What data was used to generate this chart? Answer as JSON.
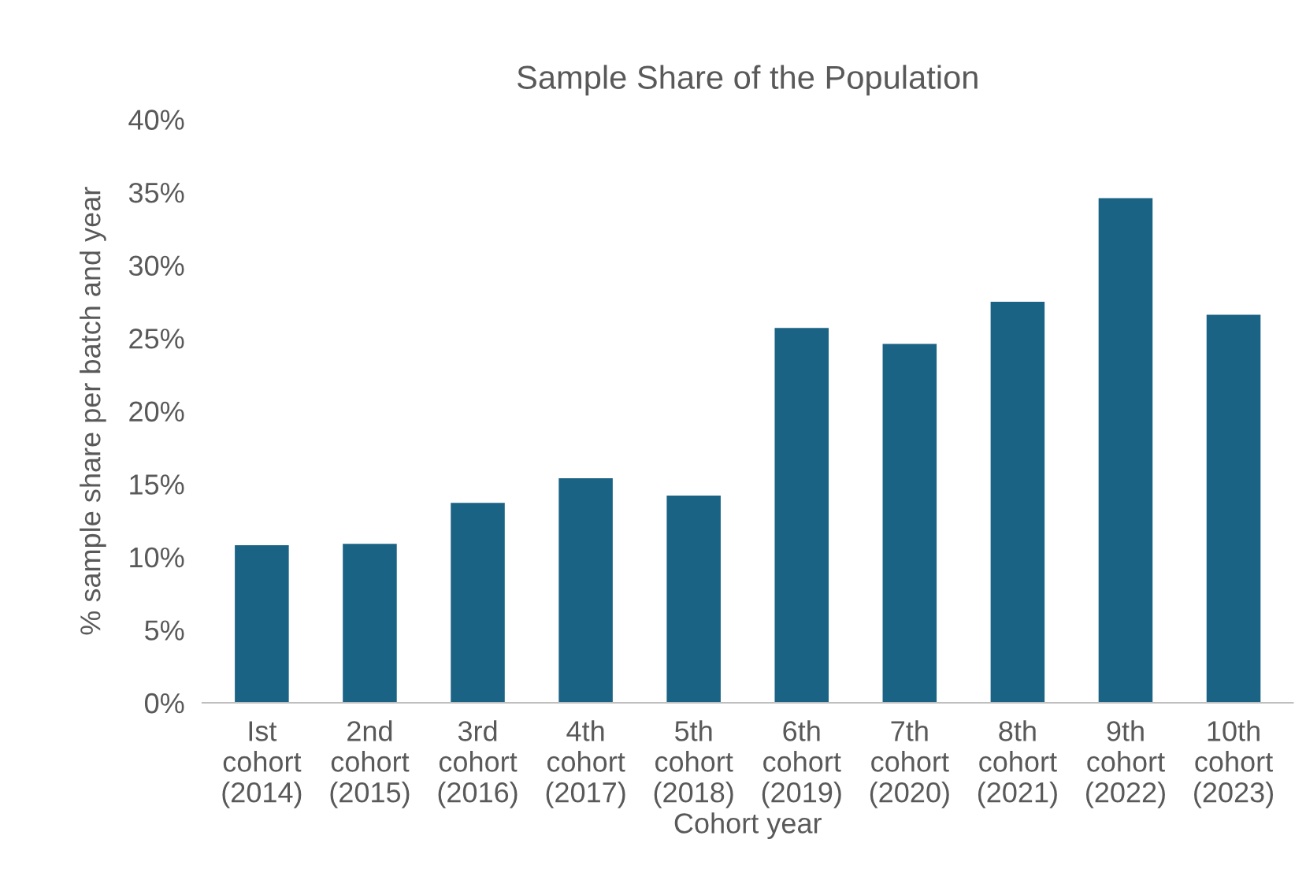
{
  "chart_data": {
    "type": "bar",
    "title": "Sample Share of the Population",
    "xlabel": "Cohort year",
    "ylabel": "% sample share per batch and year",
    "categories": [
      "Ist\ncohort\n(2014)",
      "2nd\ncohort\n(2015)",
      "3rd\ncohort\n(2016)",
      "4th\ncohort\n(2017)",
      "5th\ncohort\n(2018)",
      "6th\ncohort\n(2019)",
      "7th\ncohort\n(2020)",
      "8th\ncohort\n(2021)",
      "9th\ncohort\n(2022)",
      "10th\ncohort\n(2023)"
    ],
    "values": [
      10.8,
      10.9,
      13.7,
      15.4,
      14.2,
      25.7,
      24.6,
      27.5,
      34.6,
      26.6
    ],
    "color": "#1a6385",
    "ylim": [
      0,
      40
    ],
    "yticks": [
      {
        "value": 0,
        "label": "0%"
      },
      {
        "value": 5,
        "label": "5%"
      },
      {
        "value": 10,
        "label": "10%"
      },
      {
        "value": 15,
        "label": "15%"
      },
      {
        "value": 20,
        "label": "20%"
      },
      {
        "value": 25,
        "label": "25%"
      },
      {
        "value": 30,
        "label": "30%"
      },
      {
        "value": 35,
        "label": "35%"
      },
      {
        "value": 40,
        "label": "40%"
      }
    ],
    "grid": false,
    "legend": false
  }
}
